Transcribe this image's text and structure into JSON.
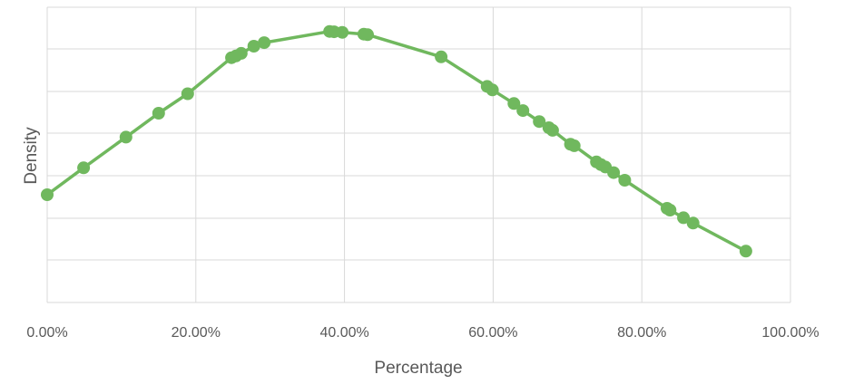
{
  "chart_data": {
    "type": "scatter",
    "title": "",
    "xlabel": "Percentage",
    "ylabel": "Density",
    "xlim": [
      0,
      1
    ],
    "x_ticks": [
      0,
      0.2,
      0.4,
      0.6,
      0.8,
      1.0
    ],
    "x_tick_labels": [
      "0.00%",
      "20.00%",
      "40.00%",
      "60.00%",
      "80.00%",
      "100.00%"
    ],
    "y_tick_labels": [],
    "grid": true,
    "legend": false,
    "colors": {
      "series": "#70b85e",
      "grid": "#d9d9d9",
      "text": "#595959"
    },
    "series": [
      {
        "points": [
          {
            "x": 0.0,
            "y": 0.365
          },
          {
            "x": 0.049,
            "y": 0.456
          },
          {
            "x": 0.106,
            "y": 0.56
          },
          {
            "x": 0.15,
            "y": 0.641
          },
          {
            "x": 0.189,
            "y": 0.707
          },
          {
            "x": 0.248,
            "y": 0.829
          },
          {
            "x": 0.254,
            "y": 0.835
          },
          {
            "x": 0.261,
            "y": 0.844
          },
          {
            "x": 0.278,
            "y": 0.868
          },
          {
            "x": 0.292,
            "y": 0.88
          },
          {
            "x": 0.38,
            "y": 0.918
          },
          {
            "x": 0.386,
            "y": 0.917
          },
          {
            "x": 0.397,
            "y": 0.915
          },
          {
            "x": 0.426,
            "y": 0.909
          },
          {
            "x": 0.431,
            "y": 0.907
          },
          {
            "x": 0.53,
            "y": 0.832
          },
          {
            "x": 0.592,
            "y": 0.732
          },
          {
            "x": 0.599,
            "y": 0.72
          },
          {
            "x": 0.628,
            "y": 0.674
          },
          {
            "x": 0.64,
            "y": 0.65
          },
          {
            "x": 0.662,
            "y": 0.613
          },
          {
            "x": 0.675,
            "y": 0.592
          },
          {
            "x": 0.68,
            "y": 0.583
          },
          {
            "x": 0.704,
            "y": 0.536
          },
          {
            "x": 0.709,
            "y": 0.531
          },
          {
            "x": 0.739,
            "y": 0.476
          },
          {
            "x": 0.745,
            "y": 0.467
          },
          {
            "x": 0.751,
            "y": 0.459
          },
          {
            "x": 0.762,
            "y": 0.44
          },
          {
            "x": 0.777,
            "y": 0.414
          },
          {
            "x": 0.834,
            "y": 0.319
          },
          {
            "x": 0.838,
            "y": 0.313
          },
          {
            "x": 0.856,
            "y": 0.287
          },
          {
            "x": 0.869,
            "y": 0.269
          },
          {
            "x": 0.94,
            "y": 0.174
          }
        ]
      }
    ]
  }
}
